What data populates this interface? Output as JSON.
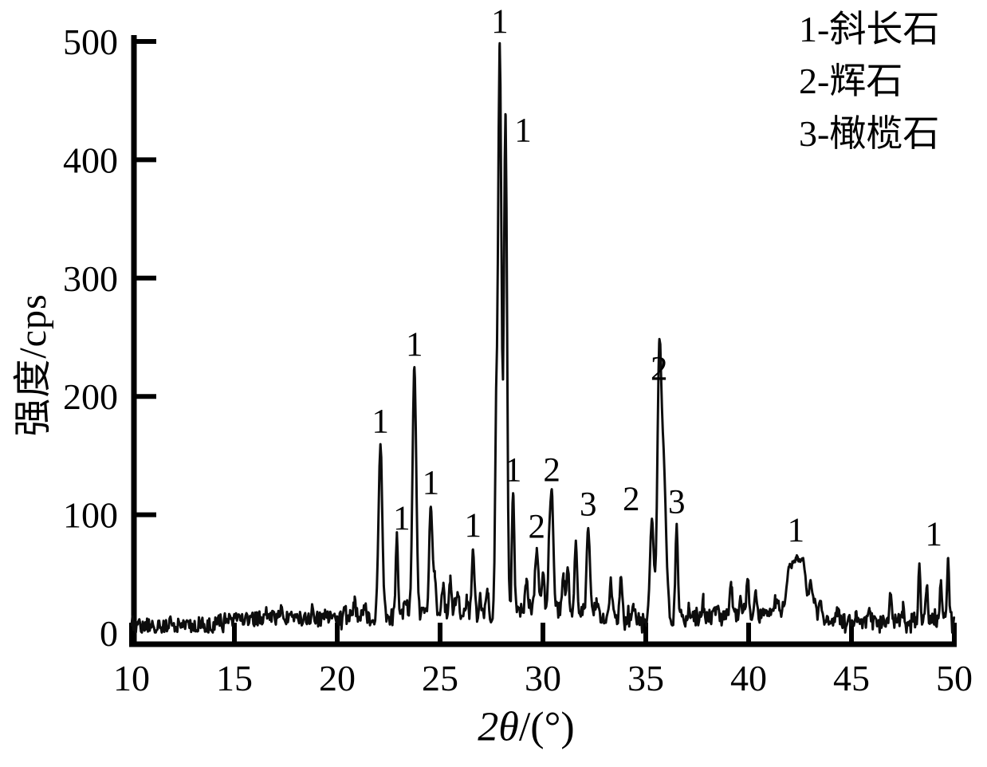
{
  "legend": {
    "items": [
      "1-斜长石",
      "2-辉石",
      "3-橄榄石"
    ]
  },
  "axes": {
    "x": {
      "label_italic": "2θ",
      "label_rest": "/(°)",
      "full_label": "2θ/(°)",
      "min": 10,
      "max": 50,
      "ticks": [
        10,
        15,
        20,
        25,
        30,
        35,
        40,
        45,
        50
      ]
    },
    "y": {
      "label": "强度/cps",
      "min": 0,
      "max": 500,
      "ticks": [
        0,
        100,
        200,
        300,
        400,
        500
      ]
    }
  },
  "chart_data": {
    "type": "line",
    "title": "",
    "xlabel": "2θ/(°)",
    "ylabel": "强度/cps",
    "xlim": [
      10,
      50
    ],
    "ylim": [
      0,
      500
    ],
    "grid": false,
    "legend_position": "top-right",
    "line_color": "#0d0d0d",
    "phases": [
      {
        "marker": "1",
        "name": "斜长石"
      },
      {
        "marker": "2",
        "name": "辉石"
      },
      {
        "marker": "3",
        "name": "橄榄石"
      }
    ],
    "labeled_peaks": [
      {
        "two_theta": 22.1,
        "intensity_cps": 160,
        "phase_marker": "1"
      },
      {
        "two_theta": 22.9,
        "intensity_cps": 81,
        "phase_marker": "1"
      },
      {
        "two_theta": 23.75,
        "intensity_cps": 225,
        "phase_marker": "1"
      },
      {
        "two_theta": 24.55,
        "intensity_cps": 108,
        "phase_marker": "1"
      },
      {
        "two_theta": 26.6,
        "intensity_cps": 72,
        "phase_marker": "1"
      },
      {
        "two_theta": 27.9,
        "intensity_cps": 498,
        "phase_marker": "1"
      },
      {
        "two_theta": 28.18,
        "intensity_cps": 437,
        "phase_marker": "1"
      },
      {
        "two_theta": 28.55,
        "intensity_cps": 119,
        "phase_marker": "1"
      },
      {
        "two_theta": 29.7,
        "intensity_cps": 71,
        "phase_marker": "2"
      },
      {
        "two_theta": 30.43,
        "intensity_cps": 119,
        "phase_marker": "2"
      },
      {
        "two_theta": 32.2,
        "intensity_cps": 90,
        "phase_marker": "3"
      },
      {
        "two_theta": 35.3,
        "intensity_cps": 97,
        "phase_marker": "2"
      },
      {
        "two_theta": 35.65,
        "intensity_cps": 203,
        "phase_marker": "2"
      },
      {
        "two_theta": 36.5,
        "intensity_cps": 92,
        "phase_marker": "3"
      },
      {
        "two_theta": 42.3,
        "intensity_cps": 60,
        "phase_marker": "1"
      },
      {
        "two_theta": 49.7,
        "intensity_cps": 62,
        "phase_marker": "1"
      }
    ],
    "unlabeled_features": [
      [
        17.3,
        22
      ],
      [
        18.05,
        18
      ],
      [
        18.8,
        20
      ],
      [
        19.4,
        16
      ],
      [
        20.35,
        24
      ],
      [
        20.85,
        26
      ],
      [
        21.3,
        22
      ],
      [
        23.3,
        26
      ],
      [
        24.75,
        45
      ],
      [
        25.15,
        40
      ],
      [
        25.5,
        46
      ],
      [
        25.85,
        38
      ],
      [
        26.3,
        28
      ],
      [
        26.95,
        30
      ],
      [
        27.3,
        34
      ],
      [
        27.72,
        150,
        0.05
      ],
      [
        29.2,
        45
      ],
      [
        30.0,
        52
      ],
      [
        30.3,
        58,
        0.05
      ],
      [
        31.0,
        48
      ],
      [
        31.2,
        55
      ],
      [
        31.6,
        78
      ],
      [
        32.6,
        28
      ],
      [
        33.3,
        45
      ],
      [
        33.8,
        48
      ],
      [
        34.4,
        22
      ],
      [
        35.85,
        146,
        0.13
      ],
      [
        37.1,
        20
      ],
      [
        37.8,
        25
      ],
      [
        38.45,
        22
      ],
      [
        39.15,
        42
      ],
      [
        39.6,
        30
      ],
      [
        39.95,
        47
      ],
      [
        40.35,
        32
      ],
      [
        41.3,
        30
      ],
      [
        41.95,
        48,
        0.12
      ],
      [
        42.65,
        52,
        0.14
      ],
      [
        43.05,
        42,
        0.1
      ],
      [
        43.5,
        28
      ],
      [
        44.3,
        18
      ],
      [
        45.2,
        16
      ],
      [
        45.9,
        18
      ],
      [
        46.9,
        32
      ],
      [
        47.5,
        18
      ],
      [
        48.3,
        58,
        0.05
      ],
      [
        48.65,
        38,
        0.05
      ],
      [
        49.35,
        45,
        0.05
      ]
    ],
    "baseline_cps": [
      [
        10,
        6
      ],
      [
        13.5,
        7
      ],
      [
        14.5,
        10
      ],
      [
        17,
        13
      ],
      [
        19,
        12
      ],
      [
        20,
        13
      ],
      [
        22,
        13
      ],
      [
        24,
        15
      ],
      [
        25,
        17
      ],
      [
        26.5,
        15
      ],
      [
        28.4,
        15
      ],
      [
        29.3,
        22
      ],
      [
        30.6,
        20
      ],
      [
        31.9,
        18
      ],
      [
        32.8,
        15
      ],
      [
        34.6,
        11
      ],
      [
        36,
        10
      ],
      [
        37,
        12
      ],
      [
        38.3,
        14
      ],
      [
        40.3,
        14
      ],
      [
        41.5,
        18
      ],
      [
        43,
        18
      ],
      [
        44,
        11
      ],
      [
        45.5,
        8
      ],
      [
        47,
        9
      ],
      [
        48,
        11
      ],
      [
        49.9,
        10
      ],
      [
        50,
        8
      ]
    ],
    "noise_amplitude_cps": 6.5
  }
}
